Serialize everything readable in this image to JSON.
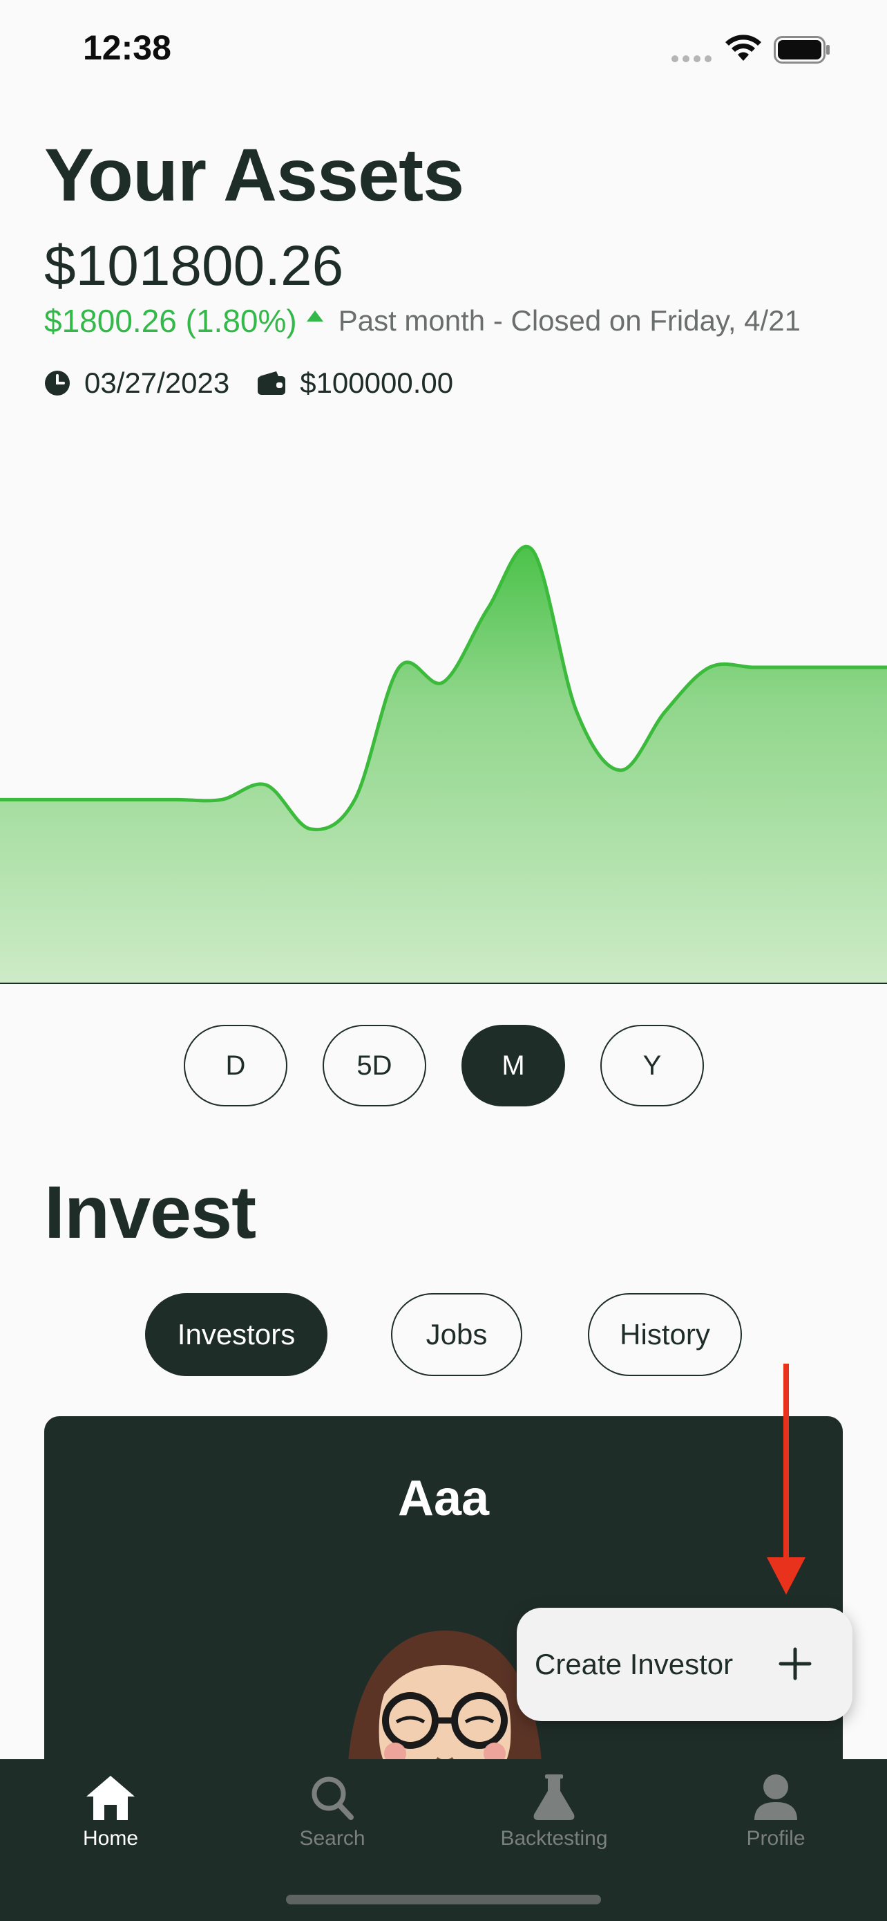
{
  "status_bar": {
    "time": "12:38"
  },
  "header": {
    "title": "Your Assets",
    "total_value": "$101800.26",
    "change": "$1800.26 (1.80%)",
    "period_note": "Past month - Closed on Friday, 4/21",
    "start_date": "03/27/2023",
    "initial_balance": "$100000.00"
  },
  "chart_data": {
    "type": "area",
    "x": [
      0,
      1,
      2,
      3,
      4,
      5,
      6,
      7,
      8,
      9,
      10,
      11,
      12,
      13,
      14,
      15,
      16,
      17,
      18,
      19,
      20
    ],
    "values": [
      100,
      100,
      100,
      100,
      100,
      100,
      100.2,
      99.6,
      100,
      101.8,
      101.6,
      102.6,
      103.4,
      101.2,
      100.4,
      101.2,
      101.8,
      101.8,
      101.8,
      101.8,
      101.8
    ],
    "line_color": "#3cba3c",
    "fill_color": "#8ed68a",
    "grid": false
  },
  "ranges": [
    "D",
    "5D",
    "M",
    "Y"
  ],
  "active_range": "M",
  "invest": {
    "title": "Invest",
    "tabs": [
      "Investors",
      "Jobs",
      "History"
    ],
    "active_tab": "Investors"
  },
  "investor_card": {
    "name": "Aaa"
  },
  "fab": {
    "label": "Create Investor"
  },
  "nav": {
    "items": [
      {
        "label": "Home",
        "icon": "home-icon"
      },
      {
        "label": "Search",
        "icon": "search-icon"
      },
      {
        "label": "Backtesting",
        "icon": "flask-icon"
      },
      {
        "label": "Profile",
        "icon": "profile-icon"
      }
    ],
    "active": "Home"
  },
  "colors": {
    "brand_dark": "#1f2d28",
    "positive": "#35b84a",
    "annotation": "#e8321c"
  }
}
